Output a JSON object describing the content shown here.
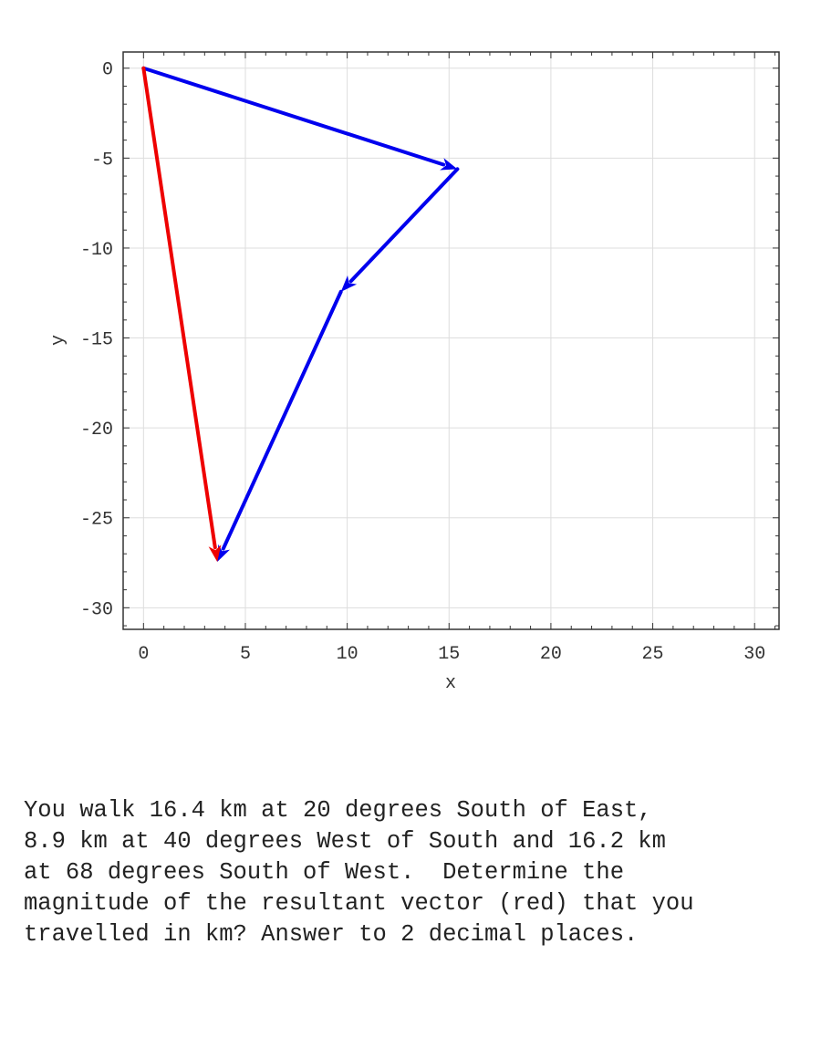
{
  "chart_data": {
    "type": "line",
    "title": "",
    "xlabel": "x",
    "ylabel": "y",
    "xlim": [
      -1,
      31.2
    ],
    "ylim": [
      -31.2,
      0.9
    ],
    "xticks": [
      0,
      5,
      10,
      15,
      20,
      25,
      30
    ],
    "yticks": [
      0,
      -5,
      -10,
      -15,
      -20,
      -25,
      -30
    ],
    "xtick_labels": [
      "0",
      "5",
      "10",
      "15",
      "20",
      "25",
      "30"
    ],
    "ytick_labels": [
      "0",
      "-5",
      "-10",
      "-15",
      "-20",
      "-25",
      "-30"
    ],
    "grid": true,
    "series": [
      {
        "kind": "arrow",
        "color": "#0000ee",
        "start": [
          0,
          0
        ],
        "end": [
          15.41,
          -5.61
        ]
      },
      {
        "kind": "arrow",
        "color": "#0000ee",
        "start": [
          15.41,
          -5.61
        ],
        "end": [
          9.69,
          -12.43
        ]
      },
      {
        "kind": "arrow",
        "color": "#0000ee",
        "start": [
          9.69,
          -12.43
        ],
        "end": [
          3.62,
          -27.45
        ]
      },
      {
        "kind": "arrow",
        "color": "#ee0000",
        "start": [
          0,
          0
        ],
        "end": [
          3.62,
          -27.45
        ]
      }
    ]
  },
  "question": {
    "lines": [
      "You walk 16.4 km at 20 degrees South of East,",
      "8.9 km at 40 degrees West of South and 16.2 km",
      "at 68 degrees South of West.  Determine the",
      "magnitude of the resultant vector (red) that you",
      "travelled in km? Answer to 2 decimal places."
    ]
  }
}
